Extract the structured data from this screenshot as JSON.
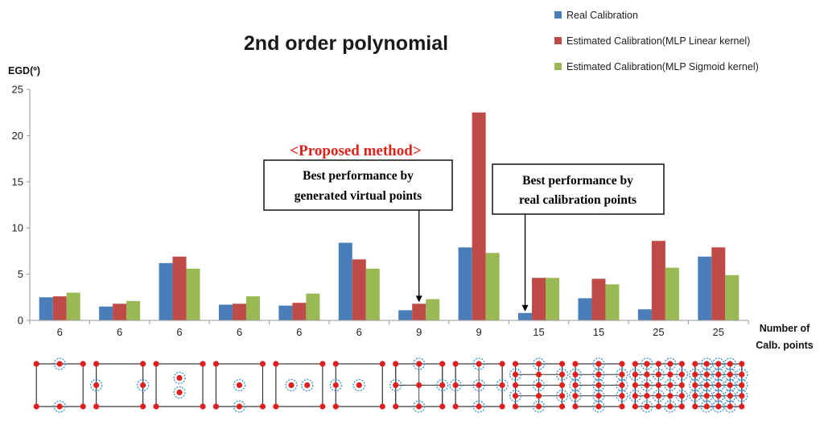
{
  "chart_data": {
    "type": "bar",
    "title": "2nd order polynomial",
    "ylabel": "EGD(º)",
    "xlabel": "Number of Calb. points",
    "xlabel_lines": [
      "Number of",
      "Calb. points"
    ],
    "ylim": [
      0,
      25
    ],
    "yticks": [
      0,
      5,
      10,
      15,
      20,
      25
    ],
    "grid": false,
    "legend_position": "top-right",
    "categories": [
      "6",
      "6",
      "6",
      "6",
      "6",
      "6",
      "9",
      "9",
      "15",
      "15",
      "25",
      "25"
    ],
    "series": [
      {
        "name": "Real Calibration",
        "color": "#4a7ebb",
        "values": [
          2.5,
          1.5,
          6.2,
          1.7,
          1.6,
          8.4,
          1.1,
          7.9,
          0.8,
          2.4,
          1.2,
          6.9
        ]
      },
      {
        "name": "Estimated Calibration(MLP Linear kernel)",
        "color": "#be4b48",
        "values": [
          2.6,
          1.8,
          6.9,
          1.8,
          1.9,
          6.6,
          1.8,
          22.5,
          4.6,
          4.5,
          8.6,
          7.9
        ]
      },
      {
        "name": "Estimated Calibration(MLP Sigmoid kernel)",
        "color": "#98b954",
        "values": [
          3.0,
          2.1,
          5.6,
          2.6,
          2.9,
          5.6,
          2.3,
          7.3,
          4.6,
          3.9,
          5.7,
          4.9
        ]
      }
    ],
    "annotations": {
      "proposed_label": "<Proposed method>",
      "box_virtual": [
        "Best performance by",
        "generated virtual points"
      ],
      "box_real": [
        "Best performance by",
        "real calibration points"
      ]
    },
    "point_layouts": [
      {
        "real": [
          [
            0,
            0
          ],
          [
            1,
            0
          ],
          [
            0,
            1
          ],
          [
            1,
            1
          ]
        ],
        "virtual": [
          [
            0.5,
            0
          ],
          [
            0.5,
            1
          ]
        ]
      },
      {
        "real": [
          [
            0,
            0
          ],
          [
            1,
            0
          ],
          [
            0,
            1
          ],
          [
            1,
            1
          ]
        ],
        "virtual": [
          [
            0,
            0.5
          ],
          [
            1,
            0.5
          ]
        ]
      },
      {
        "real": [
          [
            0,
            0
          ],
          [
            1,
            0
          ],
          [
            0,
            1
          ],
          [
            1,
            1
          ]
        ],
        "virtual": [
          [
            0.5,
            0.33
          ],
          [
            0.5,
            0.67
          ]
        ]
      },
      {
        "real": [
          [
            0,
            0
          ],
          [
            1,
            0
          ],
          [
            0,
            1
          ],
          [
            1,
            1
          ]
        ],
        "virtual": [
          [
            0.5,
            0.5
          ],
          [
            0.5,
            1
          ]
        ]
      },
      {
        "real": [
          [
            0,
            0
          ],
          [
            1,
            0
          ],
          [
            0,
            1
          ],
          [
            1,
            1
          ]
        ],
        "virtual": [
          [
            0.33,
            0.5
          ],
          [
            0.67,
            0.5
          ]
        ]
      },
      {
        "real": [
          [
            0,
            0
          ],
          [
            1,
            0
          ],
          [
            0,
            1
          ],
          [
            1,
            1
          ]
        ],
        "virtual": [
          [
            0.5,
            0.5
          ],
          [
            0,
            0.5
          ]
        ]
      }
    ],
    "marker_colors": {
      "real_point": "#e02020",
      "virtual_circle": "#3a8fd0",
      "frame": "#333333"
    }
  }
}
